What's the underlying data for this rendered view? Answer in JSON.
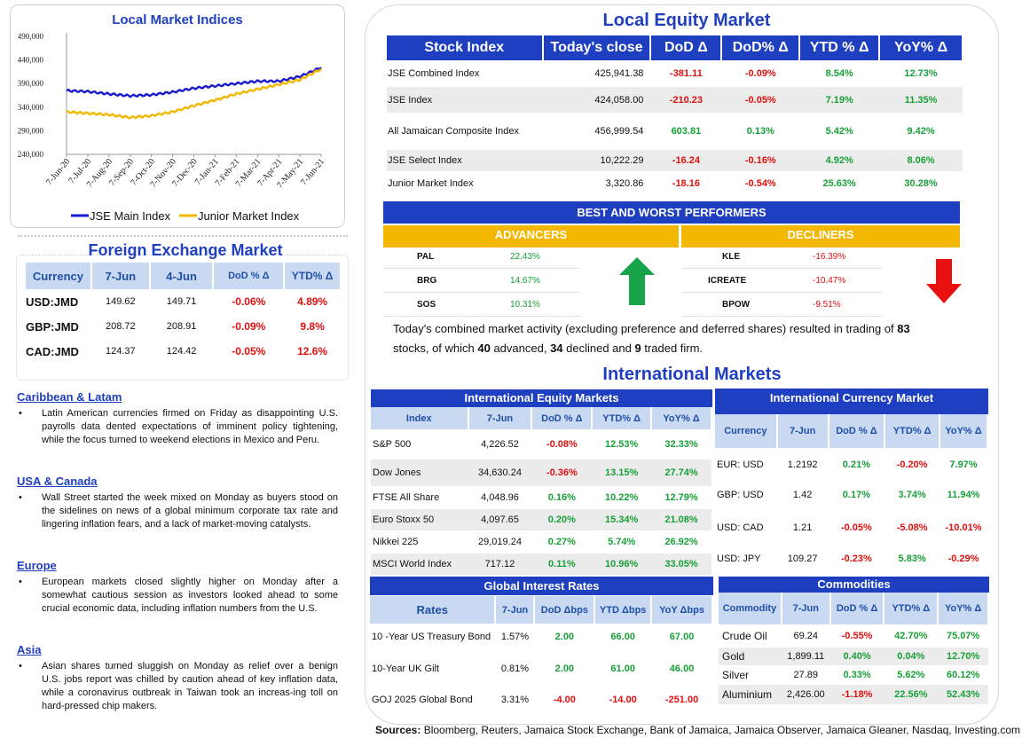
{
  "chart_data": {
    "type": "line",
    "title": "Local Market Indices",
    "categories": [
      "7-Jun-20",
      "7-Jul-20",
      "7-Aug-20",
      "7-Sep-20",
      "7-Oct-20",
      "7-Nov-20",
      "7-Dec-20",
      "7-Jan-21",
      "7-Feb-21",
      "7-Mar-21",
      "7-Apr-21",
      "7-May-21",
      "7-Jun-21"
    ],
    "ylim": [
      240000,
      490000
    ],
    "yticks": [
      "240,000",
      "290,000",
      "340,000",
      "390,000",
      "440,000",
      "490,000"
    ],
    "series": [
      {
        "name": "JSE Main Index",
        "color": "#1a1ad0",
        "values": [
          375000,
          373000,
          368000,
          364000,
          366000,
          372000,
          380000,
          385000,
          390000,
          395000,
          395000,
          405000,
          424000
        ]
      },
      {
        "name": "Junior Market Index",
        "color": "#f4b700",
        "values": [
          330000,
          327000,
          324000,
          318000,
          322000,
          330000,
          343000,
          355000,
          368000,
          378000,
          388000,
          398000,
          421000
        ]
      }
    ]
  },
  "chart_panel": {
    "title": "Local Market Indices"
  },
  "fx": {
    "title": "Foreign Exchange Market",
    "headers": [
      "Currency",
      "7-Jun",
      "4-Jun",
      "DoD % Δ",
      "YTD% Δ"
    ],
    "rows": [
      {
        "name": "USD:JMD",
        "cur": "149.62",
        "prev": "149.71",
        "dod": "-0.06%",
        "ytd": "4.89%"
      },
      {
        "name": "GBP:JMD",
        "cur": "208.72",
        "prev": "208.91",
        "dod": "-0.09%",
        "ytd": "9.8%"
      },
      {
        "name": "CAD:JMD",
        "cur": "124.37",
        "prev": "124.42",
        "dod": "-0.05%",
        "ytd": "12.6%"
      }
    ]
  },
  "news": [
    {
      "head": "Caribbean & Latam",
      "body": "Latin American currencies firmed on Friday as disappointing U.S. payrolls data dented expectations of imminent policy tightening, while the focus turned to weekend elections in Mexico and Peru."
    },
    {
      "head": "USA & Canada",
      "body": "Wall Street started the week mixed on Monday as buyers stood on the sidelines on news of a global minimum corporate tax rate and lingering inflation fears, and a lack of market-moving catalysts."
    },
    {
      "head": "Europe",
      "body": "European markets closed slightly higher on Monday after a somewhat cautious session as investors looked ahead to some crucial economic data, including inflation numbers from the U.S."
    },
    {
      "head": "Asia",
      "body": "Asian shares turned sluggish on Monday as relief over a benign U.S. jobs report was chilled by caution ahead of key inflation data, while a coronavirus outbreak in Taiwan took an increas-ing toll on hard-pressed chip makers."
    }
  ],
  "equity": {
    "title": "Local Equity Market",
    "headers": [
      "Stock Index",
      "Today's close",
      "DoD  Δ",
      "DoD% Δ",
      "YTD % Δ",
      "YoY% Δ"
    ],
    "rows": [
      {
        "name": "JSE Combined Index",
        "close": "425,941.38",
        "dod": "-381.11",
        "dodp": "-0.09%",
        "ytd": "8.54%",
        "yoy": "12.73%"
      },
      {
        "name": "JSE Index",
        "close": "424,058.00",
        "dod": "-210.23",
        "dodp": "-0.05%",
        "ytd": "7.19%",
        "yoy": "11.35%"
      },
      {
        "name": "All Jamaican Composite Index",
        "close": "456,999.54",
        "dod": "603.81",
        "dodp": "0.13%",
        "ytd": "5.42%",
        "yoy": "9.42%"
      },
      {
        "name": "JSE Select Index",
        "close": "10,222.29",
        "dod": "-16.24",
        "dodp": "-0.16%",
        "ytd": "4.92%",
        "yoy": "8.06%"
      },
      {
        "name": "Junior Market Index",
        "close": "3,320.86",
        "dod": "-18.16",
        "dodp": "-0.54%",
        "ytd": "25.63%",
        "yoy": "30.28%"
      }
    ]
  },
  "performers": {
    "title": "BEST AND WORST PERFORMERS",
    "adv_label": "ADVANCERS",
    "dec_label": "DECLINERS",
    "advancers": [
      {
        "sym": "PAL",
        "pct": "22.43%"
      },
      {
        "sym": "BRG",
        "pct": "14.67%"
      },
      {
        "sym": "SOS",
        "pct": "10.31%"
      }
    ],
    "decliners": [
      {
        "sym": "KLE",
        "pct": "-16.39%"
      },
      {
        "sym": "ICREATE",
        "pct": "-10.47%"
      },
      {
        "sym": "BPOW",
        "pct": "-9.51%"
      }
    ]
  },
  "summary": {
    "p1": "Today's combined market activity (excluding preference and deferred shares) resulted in trading of ",
    "n_total": "83",
    "p2": "stocks, of which ",
    "n_adv": "40",
    "p3": " advanced, ",
    "n_dec": "34",
    "p4": " declined and ",
    "n_flat": "9",
    "p5": " traded firm."
  },
  "intl": {
    "title": "International Markets",
    "equity": {
      "title": "International Equity Markets",
      "headers": [
        "Index",
        "7-Jun",
        "DoD % Δ",
        "YTD% Δ",
        "YoY% Δ"
      ],
      "rows": [
        {
          "name": "S&P 500",
          "v": "4,226.52",
          "dod": "-0.08%",
          "ytd": "12.53%",
          "yoy": "32.33%"
        },
        {
          "name": "Dow Jones",
          "v": "34,630.24",
          "dod": "-0.36%",
          "ytd": "13.15%",
          "yoy": "27.74%"
        },
        {
          "name": "FTSE All Share",
          "v": "4,048.96",
          "dod": "0.16%",
          "ytd": "10.22%",
          "yoy": "12.79%"
        },
        {
          "name": "Euro Stoxx 50",
          "v": "4,097.65",
          "dod": "0.20%",
          "ytd": "15.34%",
          "yoy": "21.08%"
        },
        {
          "name": "Nikkei 225",
          "v": "29,019.24",
          "dod": "0.27%",
          "ytd": "5.74%",
          "yoy": "26.92%"
        },
        {
          "name": "MSCI World Index",
          "v": "717.12",
          "dod": "0.11%",
          "ytd": "10.96%",
          "yoy": "33.05%"
        }
      ]
    },
    "currency": {
      "title": "International Currency Market",
      "headers": [
        "Currency",
        "7-Jun",
        "DoD % Δ",
        "YTD% Δ",
        "YoY% Δ"
      ],
      "rows": [
        {
          "name": "EUR: USD",
          "v": "1.2192",
          "dod": "0.21%",
          "ytd": "-0.20%",
          "yoy": "7.97%"
        },
        {
          "name": "GBP: USD",
          "v": "1.42",
          "dod": "0.17%",
          "ytd": "3.74%",
          "yoy": "11.94%"
        },
        {
          "name": "USD: CAD",
          "v": "1.21",
          "dod": "-0.05%",
          "ytd": "-5.08%",
          "yoy": "-10.01%"
        },
        {
          "name": "USD: JPY",
          "v": "109.27",
          "dod": "-0.23%",
          "ytd": "5.83%",
          "yoy": "-0.29%"
        }
      ]
    },
    "rates": {
      "title": "Global Interest Rates",
      "headers": [
        "Rates",
        "7-Jun",
        "DoD Δbps",
        "YTD Δbps",
        "YoY Δbps"
      ],
      "rows": [
        {
          "name": "10 -Year US Treasury Bond",
          "v": "1.57%",
          "dod": "2.00",
          "ytd": "66.00",
          "yoy": "67.00"
        },
        {
          "name": "10-Year UK Gilt",
          "v": "0.81%",
          "dod": "2.00",
          "ytd": "61.00",
          "yoy": "46.00"
        },
        {
          "name": "GOJ 2025 Global Bond",
          "v": "3.31%",
          "dod": "-4.00",
          "ytd": "-14.00",
          "yoy": "-251.00"
        }
      ]
    },
    "commodities": {
      "title": "Commodities",
      "headers": [
        "Commodity",
        "7-Jun",
        "DoD % Δ",
        "YTD% Δ",
        "YoY% Δ"
      ],
      "rows": [
        {
          "name": "Crude Oil",
          "v": "69.24",
          "dod": "-0.55%",
          "ytd": "42.70%",
          "yoy": "75.07%"
        },
        {
          "name": "Gold",
          "v": "1,899.11",
          "dod": "0.40%",
          "ytd": "0.04%",
          "yoy": "12.70%"
        },
        {
          "name": "Silver",
          "v": "27.89",
          "dod": "0.33%",
          "ytd": "5.62%",
          "yoy": "60.12%"
        },
        {
          "name": "Aluminium",
          "v": "2,426.00",
          "dod": "-1.18%",
          "ytd": "22.56%",
          "yoy": "52.43%"
        }
      ]
    }
  },
  "sources": {
    "label": "Sources:",
    "text": " Bloomberg, Reuters, Jamaica Stock Exchange, Bank of Jamaica, Jamaica Observer, Jamaica Gleaner, Nasdaq, Investing.com"
  },
  "colors": {
    "pos": "#18a038",
    "neg": "#e01010",
    "brand": "#1d3fc0",
    "gold": "#f4b700"
  }
}
